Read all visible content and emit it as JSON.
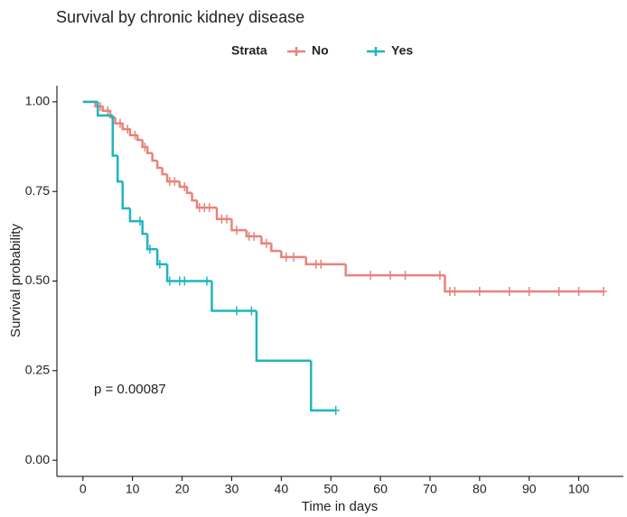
{
  "chart_data": {
    "type": "km",
    "title": "Survival by chronic kidney disease",
    "legend_title": "Strata",
    "xlabel": "Time in days",
    "ylabel": "Survival probability",
    "annotation": "p = 0.00087",
    "xlim": [
      -5.25,
      109
    ],
    "ylim": [
      -0.045,
      1.045
    ],
    "xticks": [
      0,
      10,
      20,
      30,
      40,
      50,
      60,
      70,
      80,
      90,
      100
    ],
    "yticks": [
      {
        "value": 0,
        "label": "0.00"
      },
      {
        "value": 0.25,
        "label": "0.25"
      },
      {
        "value": 0.5,
        "label": "0.50"
      },
      {
        "value": 0.75,
        "label": "0.75"
      },
      {
        "value": 1,
        "label": "1.00"
      }
    ],
    "series": [
      {
        "name": "No",
        "color": "#e8837a",
        "x": [
          0,
          2.5,
          4,
          5.5,
          6.5,
          8,
          9.5,
          11,
          12,
          13,
          14,
          15,
          16,
          17,
          19.5,
          21,
          22,
          23,
          27,
          30,
          33,
          36,
          38,
          40,
          45,
          53,
          73
        ],
        "values": [
          1,
          0.987,
          0.975,
          0.957,
          0.94,
          0.924,
          0.907,
          0.894,
          0.874,
          0.857,
          0.836,
          0.816,
          0.798,
          0.778,
          0.763,
          0.746,
          0.725,
          0.705,
          0.673,
          0.642,
          0.625,
          0.605,
          0.584,
          0.567,
          0.547,
          0.516,
          0.471
        ],
        "censor_x": [
          3.5,
          5,
          7.5,
          9,
          10.5,
          12.5,
          17.5,
          18.5,
          20.5,
          23.5,
          24.5,
          25.5,
          28,
          29,
          31,
          33.5,
          34.5,
          37,
          41,
          42.5,
          47,
          48,
          58,
          62,
          65,
          72,
          74,
          75,
          80,
          86,
          90,
          96,
          100,
          105
        ],
        "censor_values": [
          0.987,
          0.975,
          0.94,
          0.924,
          0.907,
          0.874,
          0.778,
          0.778,
          0.763,
          0.705,
          0.705,
          0.705,
          0.673,
          0.673,
          0.642,
          0.625,
          0.625,
          0.605,
          0.567,
          0.567,
          0.547,
          0.547,
          0.516,
          0.516,
          0.516,
          0.516,
          0.471,
          0.471,
          0.471,
          0.471,
          0.471,
          0.471,
          0.471,
          0.471
        ]
      },
      {
        "name": "Yes",
        "color": "#1fb5c0",
        "x": [
          0,
          3,
          6,
          7,
          8,
          9.5,
          12,
          13,
          15,
          17,
          26,
          35,
          46
        ],
        "values": [
          1,
          0.962,
          0.85,
          0.778,
          0.703,
          0.667,
          0.632,
          0.589,
          0.547,
          0.5,
          0.417,
          0.278,
          0.139
        ],
        "censor_x": [
          11.5,
          13.5,
          15.5,
          17.5,
          19.5,
          20.5,
          25,
          31,
          34,
          51
        ],
        "censor_values": [
          0.667,
          0.589,
          0.547,
          0.5,
          0.5,
          0.5,
          0.5,
          0.417,
          0.417,
          0.139
        ]
      }
    ]
  }
}
